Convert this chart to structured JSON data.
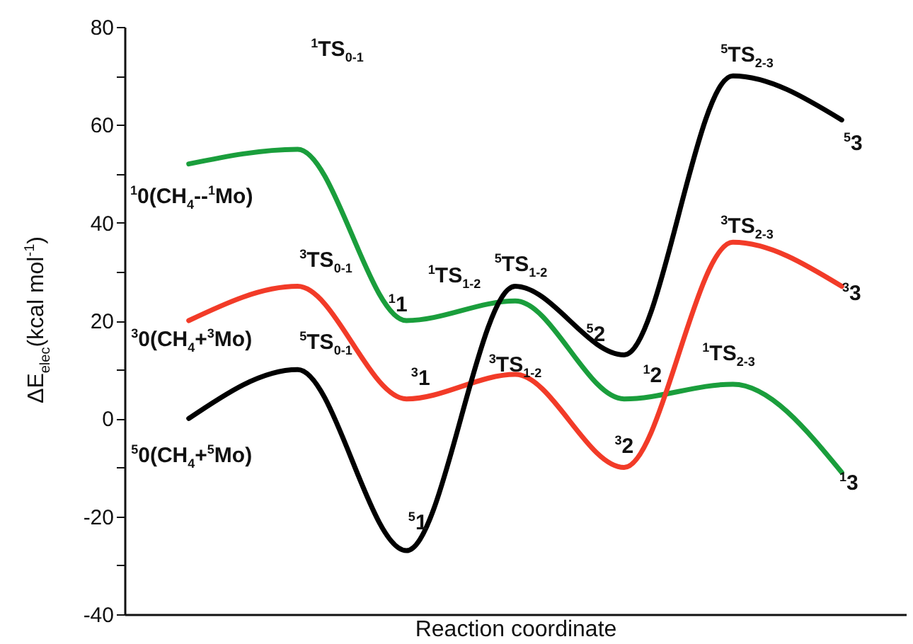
{
  "chart_data": {
    "type": "line",
    "xlabel": "Reaction coordinate",
    "ylabel": "ΔE$_{elec}$(kcal mol$^{-1}$)",
    "categories": [
      null,
      null,
      null,
      null,
      null,
      null,
      null
    ],
    "series": [
      {
        "color": "#1a9e3c",
        "values": [
          52,
          55,
          20,
          24,
          4,
          7,
          -11
        ]
      },
      {
        "color": "#f23b28",
        "values": [
          20,
          27,
          4,
          9,
          -10,
          36,
          27
        ]
      },
      {
        "color": "#000000",
        "values": [
          0,
          10,
          -27,
          27,
          13,
          70,
          61
        ]
      }
    ],
    "ylim": [
      -40,
      80
    ],
    "yticks": [
      -40,
      {
        "value": -30,
        "label": null
      },
      -20,
      {
        "value": -10,
        "label": null
      },
      0,
      {
        "value": 10,
        "label": null
      },
      20,
      {
        "value": 30,
        "label": null
      },
      40,
      {
        "value": 50,
        "label": null
      },
      60,
      {
        "value": 70,
        "label": null
      },
      80
    ],
    "annotations": [
      "$^{1}$TS$_{0-1}$",
      "$^{1}$0(CH$_{4}$--$^{1}$Mo)",
      "$^{3}$TS$_{0-1}$",
      "$^{3}$0(CH$_{4}$+$^{3}$Mo)",
      "$^{5}$TS$_{0-1}$",
      "$^{5}$0(CH$_{4}$+$^{5}$Mo)",
      "$^{1}$1",
      "$^{3}$1",
      "$^{5}$1",
      "$^{1}$TS$_{1-2}$",
      "$^{5}$TS$_{1-2}$",
      "$^{3}$TS$_{1-2}$",
      "$^{5}$2",
      "$^{1}$2",
      "$^{3}$2",
      "$^{1}$TS$_{2-3}$",
      "$^{5}$TS$_{2-3}$",
      "$^{3}$TS$_{2-3}$",
      "$^{5}$3",
      "$^{3}$3",
      "$^{1}$3"
    ],
    "line_style": "solid"
  }
}
